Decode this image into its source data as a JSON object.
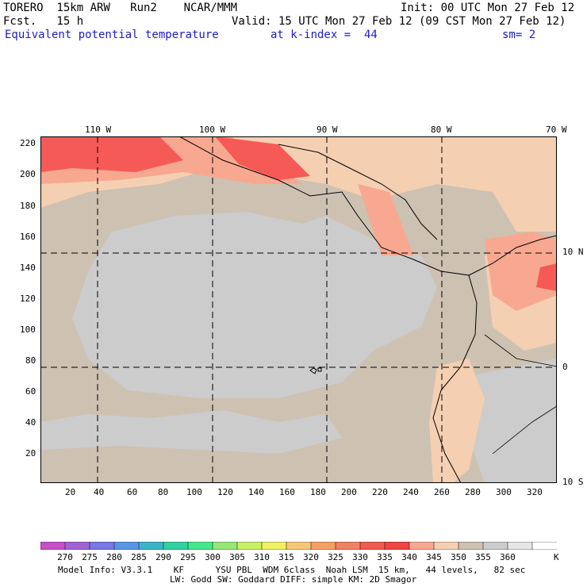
{
  "header": {
    "model": "TORERO  15km ARW   Run2    NCAR/MMM",
    "init": "Init: 00 UTC Mon 27 Feb 12",
    "fcst": "Fcst.   15 h",
    "valid": "Valid: 15 UTC Mon 27 Feb 12 (09 CST Mon 27 Feb 12)",
    "field": "Equivalent potential temperature",
    "level": "at k-index =  44",
    "smooth": "sm= 2"
  },
  "map": {
    "top_lon_labels": [
      "110 W",
      "100 W",
      "90 W",
      "80 W",
      "70 W"
    ],
    "right_lat_labels": [
      "10 N",
      "0",
      "10 S"
    ],
    "y_ticks": [
      "220",
      "200",
      "180",
      "160",
      "140",
      "120",
      "100",
      "80",
      "60",
      "40",
      "20"
    ],
    "x_ticks": [
      "20",
      "40",
      "60",
      "80",
      "100",
      "120",
      "140",
      "160",
      "180",
      "200",
      "220",
      "240",
      "260",
      "280",
      "300",
      "320"
    ],
    "colors": {
      "background": "#cdc1b2",
      "grey": "#cccccc",
      "c340": "#f5cfb2",
      "c335": "#f8a890",
      "c330": "#f77a6a",
      "c325": "#f65a56",
      "white": "#ffffff",
      "coast": "#000000"
    }
  },
  "colorbar": {
    "labels": [
      "270",
      "275",
      "280",
      "285",
      "290",
      "295",
      "300",
      "305",
      "310",
      "315",
      "320",
      "325",
      "330",
      "335",
      "340",
      "345",
      "350",
      "355",
      "360"
    ],
    "unit": "K",
    "colors": [
      "#c850c8",
      "#a064d2",
      "#7878e6",
      "#5a96e6",
      "#3cb4c8",
      "#32d2a0",
      "#46e68c",
      "#96e678",
      "#c8f064",
      "#f0f064",
      "#f5c878",
      "#f5a064",
      "#f08264",
      "#f05a50",
      "#f04646",
      "#f8a890",
      "#f5cfb2",
      "#cdc1b2",
      "#cccccc",
      "#e6e6e6",
      "#ffffff"
    ]
  },
  "footer": {
    "line1": "Model Info: V3.3.1    KF      YSU PBL  WDM 6class  Noah LSM  15 km,   44 levels,   82 sec",
    "line2": "LW: Godd SW: Goddard DIFF: simple KM: 2D Smagor"
  }
}
